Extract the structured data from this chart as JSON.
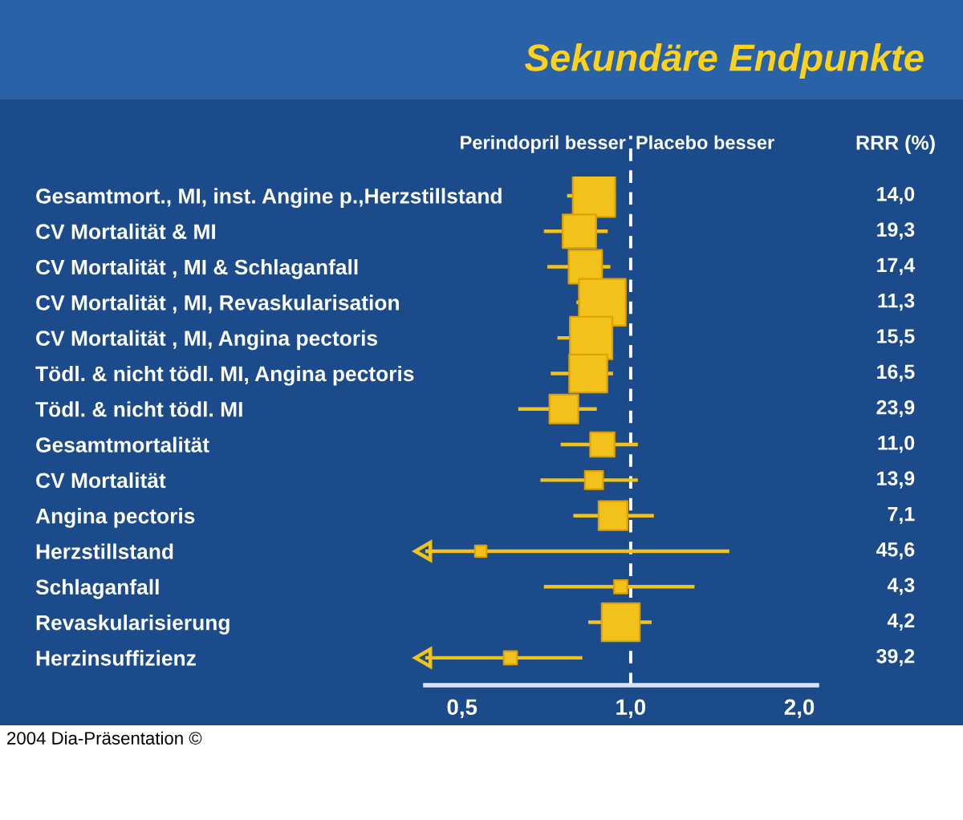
{
  "chart_data": {
    "type": "bubble",
    "orientation": "horizontal",
    "title": "Sekundäre Endpunkte",
    "categories": [
      "Gesamtmort., MI, inst. Angine p.,Herzstillstand",
      "CV Mortalität & MI",
      "CV Mortalität , MI & Schlaganfall",
      "CV Mortalität , MI, Revaskularisation",
      "CV Mortalität , MI, Angina pectoris",
      "Tödl. & nicht tödl. MI, Angina pectoris",
      "Tödl. & nicht tödl. MI",
      "Gesamtmortalität",
      "CV Mortalität",
      "Angina pectoris",
      "Herzstillstand",
      "Schlaganfall",
      "Revaskularisierung",
      "Herzinsuffizienz"
    ],
    "series": [
      {
        "color": "#f2c21b",
        "values": [
          0.86,
          0.81,
          0.83,
          0.89,
          0.85,
          0.84,
          0.76,
          0.89,
          0.86,
          0.93,
          0.54,
          0.96,
          0.96,
          0.61
        ],
        "errors": [
          [
            0.77,
            0.94
          ],
          [
            0.7,
            0.91
          ],
          [
            0.71,
            0.92
          ],
          [
            0.8,
            0.98
          ],
          [
            0.74,
            0.93
          ],
          [
            0.72,
            0.93
          ],
          [
            0.63,
            0.87
          ],
          [
            0.75,
            1.03
          ],
          [
            0.69,
            1.03
          ],
          [
            0.79,
            1.1
          ],
          [
            0.43,
            1.5
          ],
          [
            0.7,
            1.3
          ],
          [
            0.84,
            1.09
          ],
          [
            0.43,
            0.82
          ]
        ],
        "sizes": [
          0.82,
          0.51,
          0.51,
          1,
          0.82,
          0.66,
          0.38,
          0.27,
          0.15,
          0.38,
          0.06,
          0.08,
          0.66,
          0.08
        ]
      }
    ],
    "log": "x",
    "xlim": [
      0.43,
      2.15
    ],
    "xticks": [
      {
        "value": 0.5,
        "label": "0,5"
      },
      {
        "value": 1.0,
        "label": "1,0"
      },
      {
        "value": 2.0,
        "label": "2,0"
      }
    ],
    "marker": "square",
    "grid": false,
    "ref_lines": [
      {
        "axis": "x",
        "value": 1.0,
        "color": "#ffffff",
        "line_style": "dashed"
      }
    ],
    "annotations": [
      "Perindopril besser",
      "Placebo besser",
      "RRR (%)",
      "14,0",
      "19,3",
      "17,4",
      "11,3",
      "15,5",
      "16,5",
      "23,9",
      "11,0",
      "13,9",
      "7,1",
      "45,6",
      "4,3",
      "4,2",
      "39,2",
      "2004 Dia-Präsentation ©"
    ]
  }
}
